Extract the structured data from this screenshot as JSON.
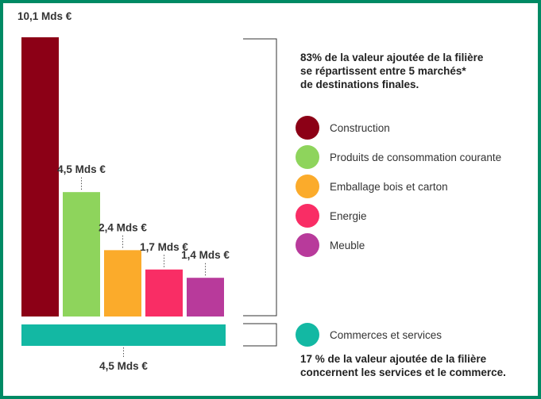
{
  "chart_data": {
    "type": "bar",
    "unit": "Mds €",
    "categories": [
      "Construction",
      "Produits de consommation courante",
      "Emballage bois et carton",
      "Energie",
      "Meuble"
    ],
    "values": [
      10.1,
      4.5,
      2.4,
      1.7,
      1.4
    ],
    "value_labels": [
      "10,1 Mds €",
      "4,5 Mds €",
      "2,4 Mds €",
      "1,7 Mds €",
      "1,4 Mds €"
    ],
    "colors": [
      "#8c0016",
      "#8ed45c",
      "#fbab2b",
      "#f92d65",
      "#b83a9b"
    ],
    "services": {
      "category": "Commerces et services",
      "value": 4.5,
      "value_label": "4,5 Mds €",
      "color": "#13b8a3"
    },
    "notes": {
      "top": [
        "83% de la valeur ajoutée de la filière",
        "se répartissent entre 5 marchés*",
        "de destinations finales."
      ],
      "bottom": [
        "17 % de la valeur ajoutée de la filière",
        "concernent les services et le commerce."
      ]
    }
  }
}
